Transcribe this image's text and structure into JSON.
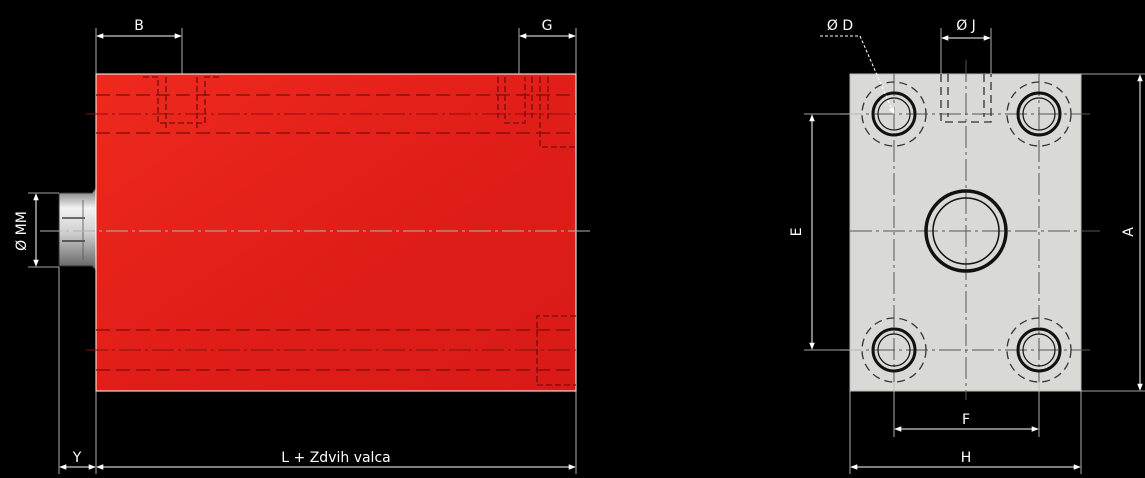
{
  "labels": {
    "b": "B",
    "g": "G",
    "mm": "Ø MM",
    "y": "Y",
    "length": "L + Zdvih valca",
    "d": "Ø D",
    "j": "Ø J",
    "e": "E",
    "a": "A",
    "f": "F",
    "h": "H"
  },
  "colors": {
    "background": "#000000",
    "cylinder_body": "#e8201a",
    "end_plate": "#d9d9d6",
    "dimension_lines": "#ffffff"
  }
}
